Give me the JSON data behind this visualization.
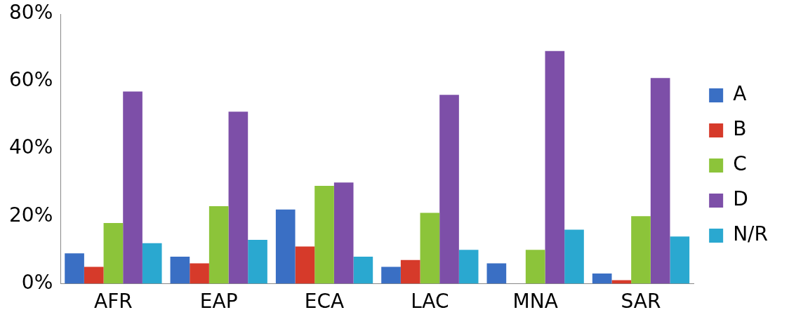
{
  "chart_data": {
    "type": "bar",
    "categories": [
      "AFR",
      "EAP",
      "ECA",
      "LAC",
      "MNA",
      "SAR"
    ],
    "series": [
      {
        "name": "A",
        "color": "#3a6fc4",
        "values": [
          9,
          8,
          22,
          5,
          6,
          3
        ]
      },
      {
        "name": "B",
        "color": "#d63a2a",
        "values": [
          5,
          6,
          11,
          7,
          0,
          1
        ]
      },
      {
        "name": "C",
        "color": "#8cc43a",
        "values": [
          18,
          23,
          29,
          21,
          10,
          20
        ]
      },
      {
        "name": "D",
        "color": "#7d4fa8",
        "values": [
          57,
          51,
          30,
          56,
          69,
          61
        ]
      },
      {
        "name": "N/R",
        "color": "#2aa8d0",
        "values": [
          12,
          13,
          8,
          10,
          16,
          14
        ]
      }
    ],
    "ylim": [
      0,
      80
    ],
    "yticks": [
      {
        "value": 0,
        "label": "0%"
      },
      {
        "value": 20,
        "label": "20%"
      },
      {
        "value": 40,
        "label": "40%"
      },
      {
        "value": 60,
        "label": "60%"
      },
      {
        "value": 80,
        "label": "80%"
      }
    ],
    "grid": false,
    "legend": "right"
  }
}
